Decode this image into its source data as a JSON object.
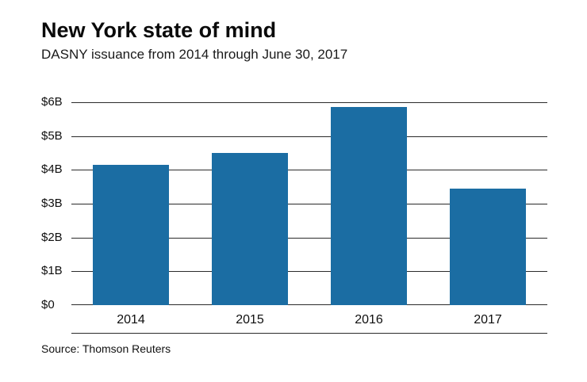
{
  "title": "New York state of mind",
  "subtitle": "DASNY issuance from 2014 through June 30, 2017",
  "source": "Source: Thomson Reuters",
  "chart_data": {
    "type": "bar",
    "title": "New York state of mind",
    "subtitle": "DASNY issuance from 2014 through June 30, 2017",
    "categories": [
      "2014",
      "2015",
      "2016",
      "2017"
    ],
    "values": [
      4.15,
      4.5,
      5.85,
      3.45
    ],
    "xlabel": "",
    "ylabel": "",
    "ylim": [
      0,
      6
    ],
    "ytick_labels": [
      "$0",
      "$1B",
      "$2B",
      "$3B",
      "$4B",
      "$5B",
      "$6B"
    ],
    "ytick_values": [
      0,
      1,
      2,
      3,
      4,
      5,
      6
    ],
    "unit": "billions USD",
    "bar_color": "#1b6da3",
    "grid": true,
    "legend": "none",
    "source": "Source: Thomson Reuters"
  }
}
